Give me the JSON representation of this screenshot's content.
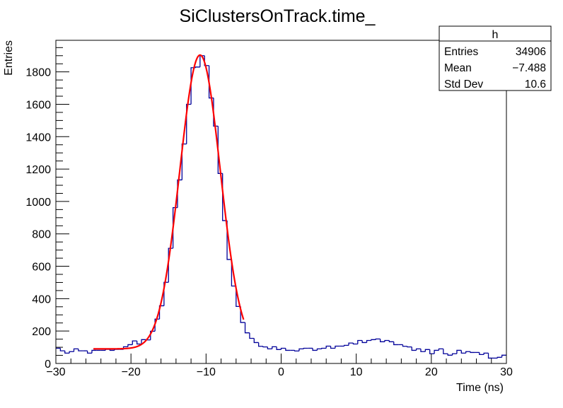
{
  "chart_data": {
    "type": "histogram",
    "title": "SiClustersOnTrack.time_",
    "xlabel": "Time (ns)",
    "ylabel": "Entries",
    "xlim": [
      -30,
      30
    ],
    "ylim": [
      0,
      1995
    ],
    "x_ticks": [
      "−30",
      "−20",
      "−10",
      "0",
      "10",
      "20",
      "30"
    ],
    "x_tick_values": [
      -30,
      -20,
      -10,
      0,
      10,
      20,
      30
    ],
    "y_ticks": [
      "0",
      "200",
      "400",
      "600",
      "800",
      "1000",
      "1200",
      "1400",
      "1600",
      "1800"
    ],
    "y_tick_values": [
      0,
      200,
      400,
      600,
      800,
      1000,
      1200,
      1400,
      1600,
      1800
    ],
    "bin_width": 0.6,
    "bin_counts": [
      94,
      78,
      64,
      73,
      90,
      78,
      78,
      64,
      81,
      81,
      81,
      87,
      81,
      87,
      87,
      103,
      116,
      139,
      120,
      147,
      145,
      199,
      274,
      356,
      501,
      711,
      962,
      1133,
      1355,
      1600,
      1826,
      1830,
      1900,
      1839,
      1639,
      1465,
      1173,
      882,
      642,
      478,
      352,
      253,
      189,
      155,
      129,
      106,
      102,
      90,
      103,
      86,
      94,
      81,
      81,
      77,
      90,
      94,
      94,
      81,
      90,
      94,
      107,
      94,
      107,
      107,
      112,
      126,
      120,
      142,
      129,
      142,
      147,
      151,
      134,
      142,
      134,
      116,
      116,
      106,
      102,
      81,
      90,
      73,
      86,
      60,
      81,
      90,
      60,
      51,
      60,
      81,
      64,
      73,
      68,
      68,
      55,
      64,
      33,
      33,
      38,
      51
    ],
    "histogram_color": "#000099",
    "fit": {
      "function": "gaus+pol0",
      "amplitude": 1814,
      "mean": -10.8,
      "sigma": 2.7,
      "constant": 90,
      "range": [
        -25,
        -5
      ],
      "color": "#ff0000"
    },
    "grid": false,
    "stats_box": {
      "title": "h",
      "position": "top-right",
      "rows": [
        {
          "label": "Entries",
          "value": "34906"
        },
        {
          "label": "Mean",
          "value": "−7.488"
        },
        {
          "label": "Std Dev",
          "value": "10.6"
        }
      ]
    }
  }
}
